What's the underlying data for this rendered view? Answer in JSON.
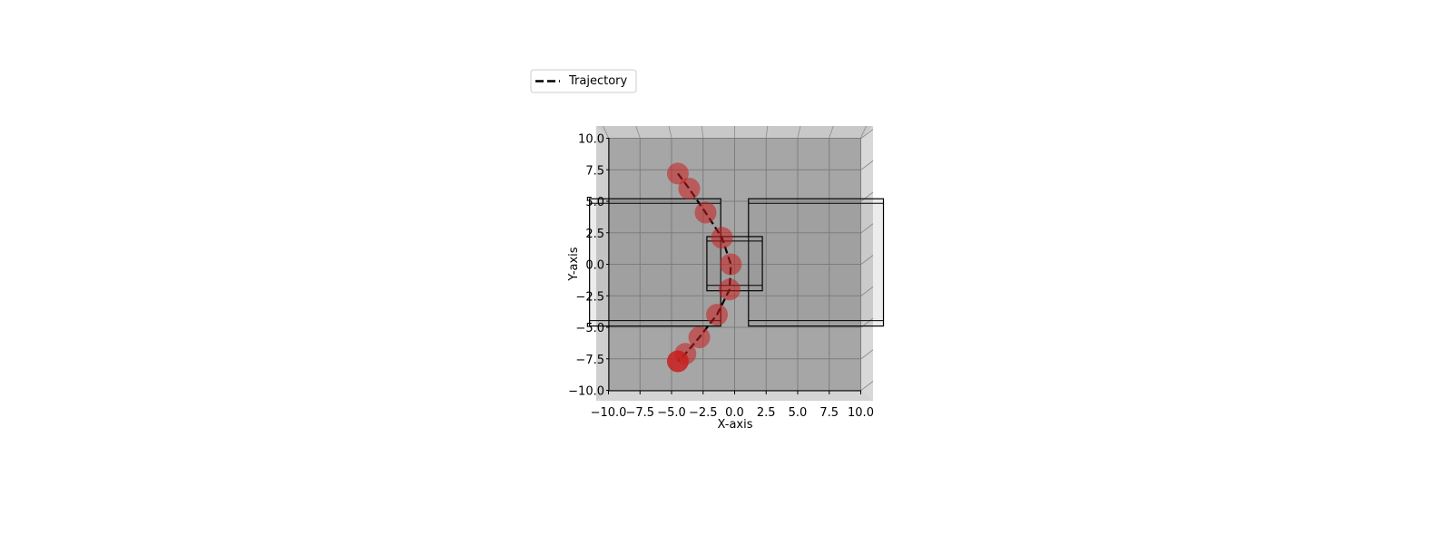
{
  "chart_data": {
    "type": "scatter",
    "projection": "3d-top-view",
    "xlabel": "X-axis",
    "ylabel": "Y-axis",
    "xlim": [
      -10,
      10
    ],
    "ylim": [
      -10,
      10
    ],
    "xticks": [
      -10.0,
      -7.5,
      -5.0,
      -2.5,
      0.0,
      2.5,
      5.0,
      7.5,
      10.0
    ],
    "yticks": [
      -10.0,
      -7.5,
      -5.0,
      -2.5,
      0.0,
      2.5,
      5.0,
      7.5,
      10.0
    ],
    "xtick_labels": [
      "−10.0",
      "−7.5",
      "−5.0",
      "−2.5",
      "0.0",
      "2.5",
      "5.0",
      "7.5",
      "10.0"
    ],
    "ytick_labels": [
      "−10.0",
      "−7.5",
      "−5.0",
      "−2.5",
      "0.0",
      "2.5",
      "5.0",
      "7.5",
      "10.0"
    ],
    "grid": true,
    "legend": {
      "placement": "upper-left",
      "entries": [
        "Trajectory"
      ]
    },
    "series": [
      {
        "name": "Trajectory",
        "style": "dashed",
        "color": "#000000",
        "x": [
          -4.5,
          -3.6,
          -2.3,
          -1.0,
          -0.3,
          -0.4,
          -1.4,
          -2.8,
          -3.9,
          -4.5
        ],
        "y": [
          7.2,
          6.0,
          4.1,
          2.1,
          0.0,
          -2.0,
          -4.0,
          -5.8,
          -7.1,
          -7.7
        ]
      }
    ],
    "markers": {
      "color": "#c81e1e",
      "x": [
        -4.5,
        -3.6,
        -2.3,
        -1.0,
        -0.3,
        -0.4,
        -1.4,
        -2.8,
        -3.9,
        -4.5
      ],
      "y": [
        7.2,
        6.0,
        4.1,
        2.1,
        0.0,
        -2.0,
        -4.0,
        -5.8,
        -7.1,
        -7.7
      ]
    },
    "obstacles": [
      {
        "x": [
          -11.5,
          -1.1
        ],
        "y": [
          -4.9,
          5.2
        ]
      },
      {
        "x": [
          1.1,
          11.8
        ],
        "y": [
          -4.9,
          5.2
        ]
      },
      {
        "x": [
          -2.2,
          2.2
        ],
        "y": [
          -2.1,
          2.2
        ]
      }
    ]
  }
}
